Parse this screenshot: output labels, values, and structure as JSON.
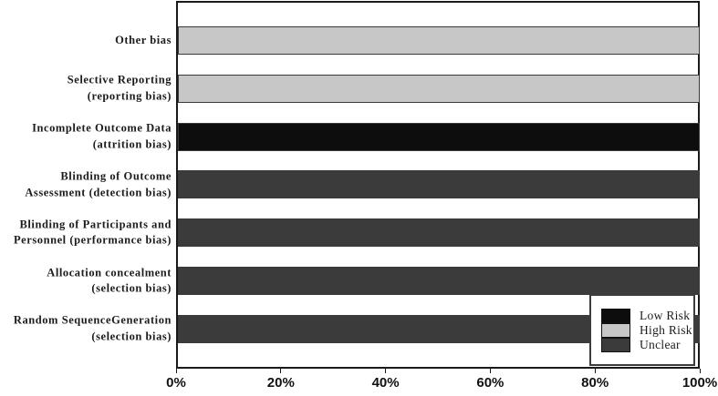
{
  "chart_data": {
    "type": "bar",
    "orientation": "horizontal",
    "title": "",
    "xlabel": "",
    "ylabel": "",
    "xlim": [
      0,
      100
    ],
    "grid": false,
    "x_ticks": [
      "0%",
      "20%",
      "40%",
      "60%",
      "80%",
      "100%"
    ],
    "categories": [
      "Other bias",
      "Selective Reporting (reporting bias)",
      "Incomplete Outcome Data (attrition bias)",
      "Blinding of Outcome Assessment (detection bias)",
      "Blinding of Participants and Personnel (performance bias)",
      "Allocation concealment (selection bias)",
      "Random SequenceGeneration (selection bias)"
    ],
    "series": [
      {
        "name": "Low Risk",
        "values": [
          0,
          0,
          100,
          0,
          0,
          0,
          0
        ]
      },
      {
        "name": "High Risk",
        "values": [
          100,
          100,
          0,
          0,
          0,
          0,
          0
        ]
      },
      {
        "name": "Unclear",
        "values": [
          0,
          0,
          0,
          100,
          100,
          100,
          100
        ]
      }
    ],
    "bars": [
      {
        "label_lines": [
          "Other bias"
        ],
        "risk": "High Risk",
        "value": 100,
        "color": "#c7c7c7"
      },
      {
        "label_lines": [
          "Selective Reporting",
          "(reporting bias)"
        ],
        "risk": "High Risk",
        "value": 100,
        "color": "#c7c7c7"
      },
      {
        "label_lines": [
          "Incomplete Outcome Data",
          "(attrition bias)"
        ],
        "risk": "Low Risk",
        "value": 100,
        "color": "#0d0d0d"
      },
      {
        "label_lines": [
          "Blinding of Outcome",
          "Assessment (detection bias)"
        ],
        "risk": "Unclear",
        "value": 100,
        "color": "#3b3b3b"
      },
      {
        "label_lines": [
          "Blinding of Participants and",
          "Personnel (performance bias)"
        ],
        "risk": "Unclear",
        "value": 100,
        "color": "#3b3b3b"
      },
      {
        "label_lines": [
          "Allocation concealment",
          "(selection bias)"
        ],
        "risk": "Unclear",
        "value": 100,
        "color": "#3b3b3b"
      },
      {
        "label_lines": [
          "Random SequenceGeneration",
          "(selection bias)"
        ],
        "risk": "Unclear",
        "value": 100,
        "color": "#3b3b3b"
      }
    ],
    "legend": {
      "position": "bottom-right",
      "entries": [
        {
          "label": "Low Risk",
          "color": "#0d0d0d"
        },
        {
          "label": "High Risk",
          "color": "#c7c7c7"
        },
        {
          "label": "Unclear",
          "color": "#3b3b3b"
        }
      ]
    },
    "colors": {
      "low_risk": "#0d0d0d",
      "high_risk": "#c7c7c7",
      "unclear": "#3b3b3b",
      "axis": "#1a1a1a",
      "background": "#ffffff"
    }
  }
}
